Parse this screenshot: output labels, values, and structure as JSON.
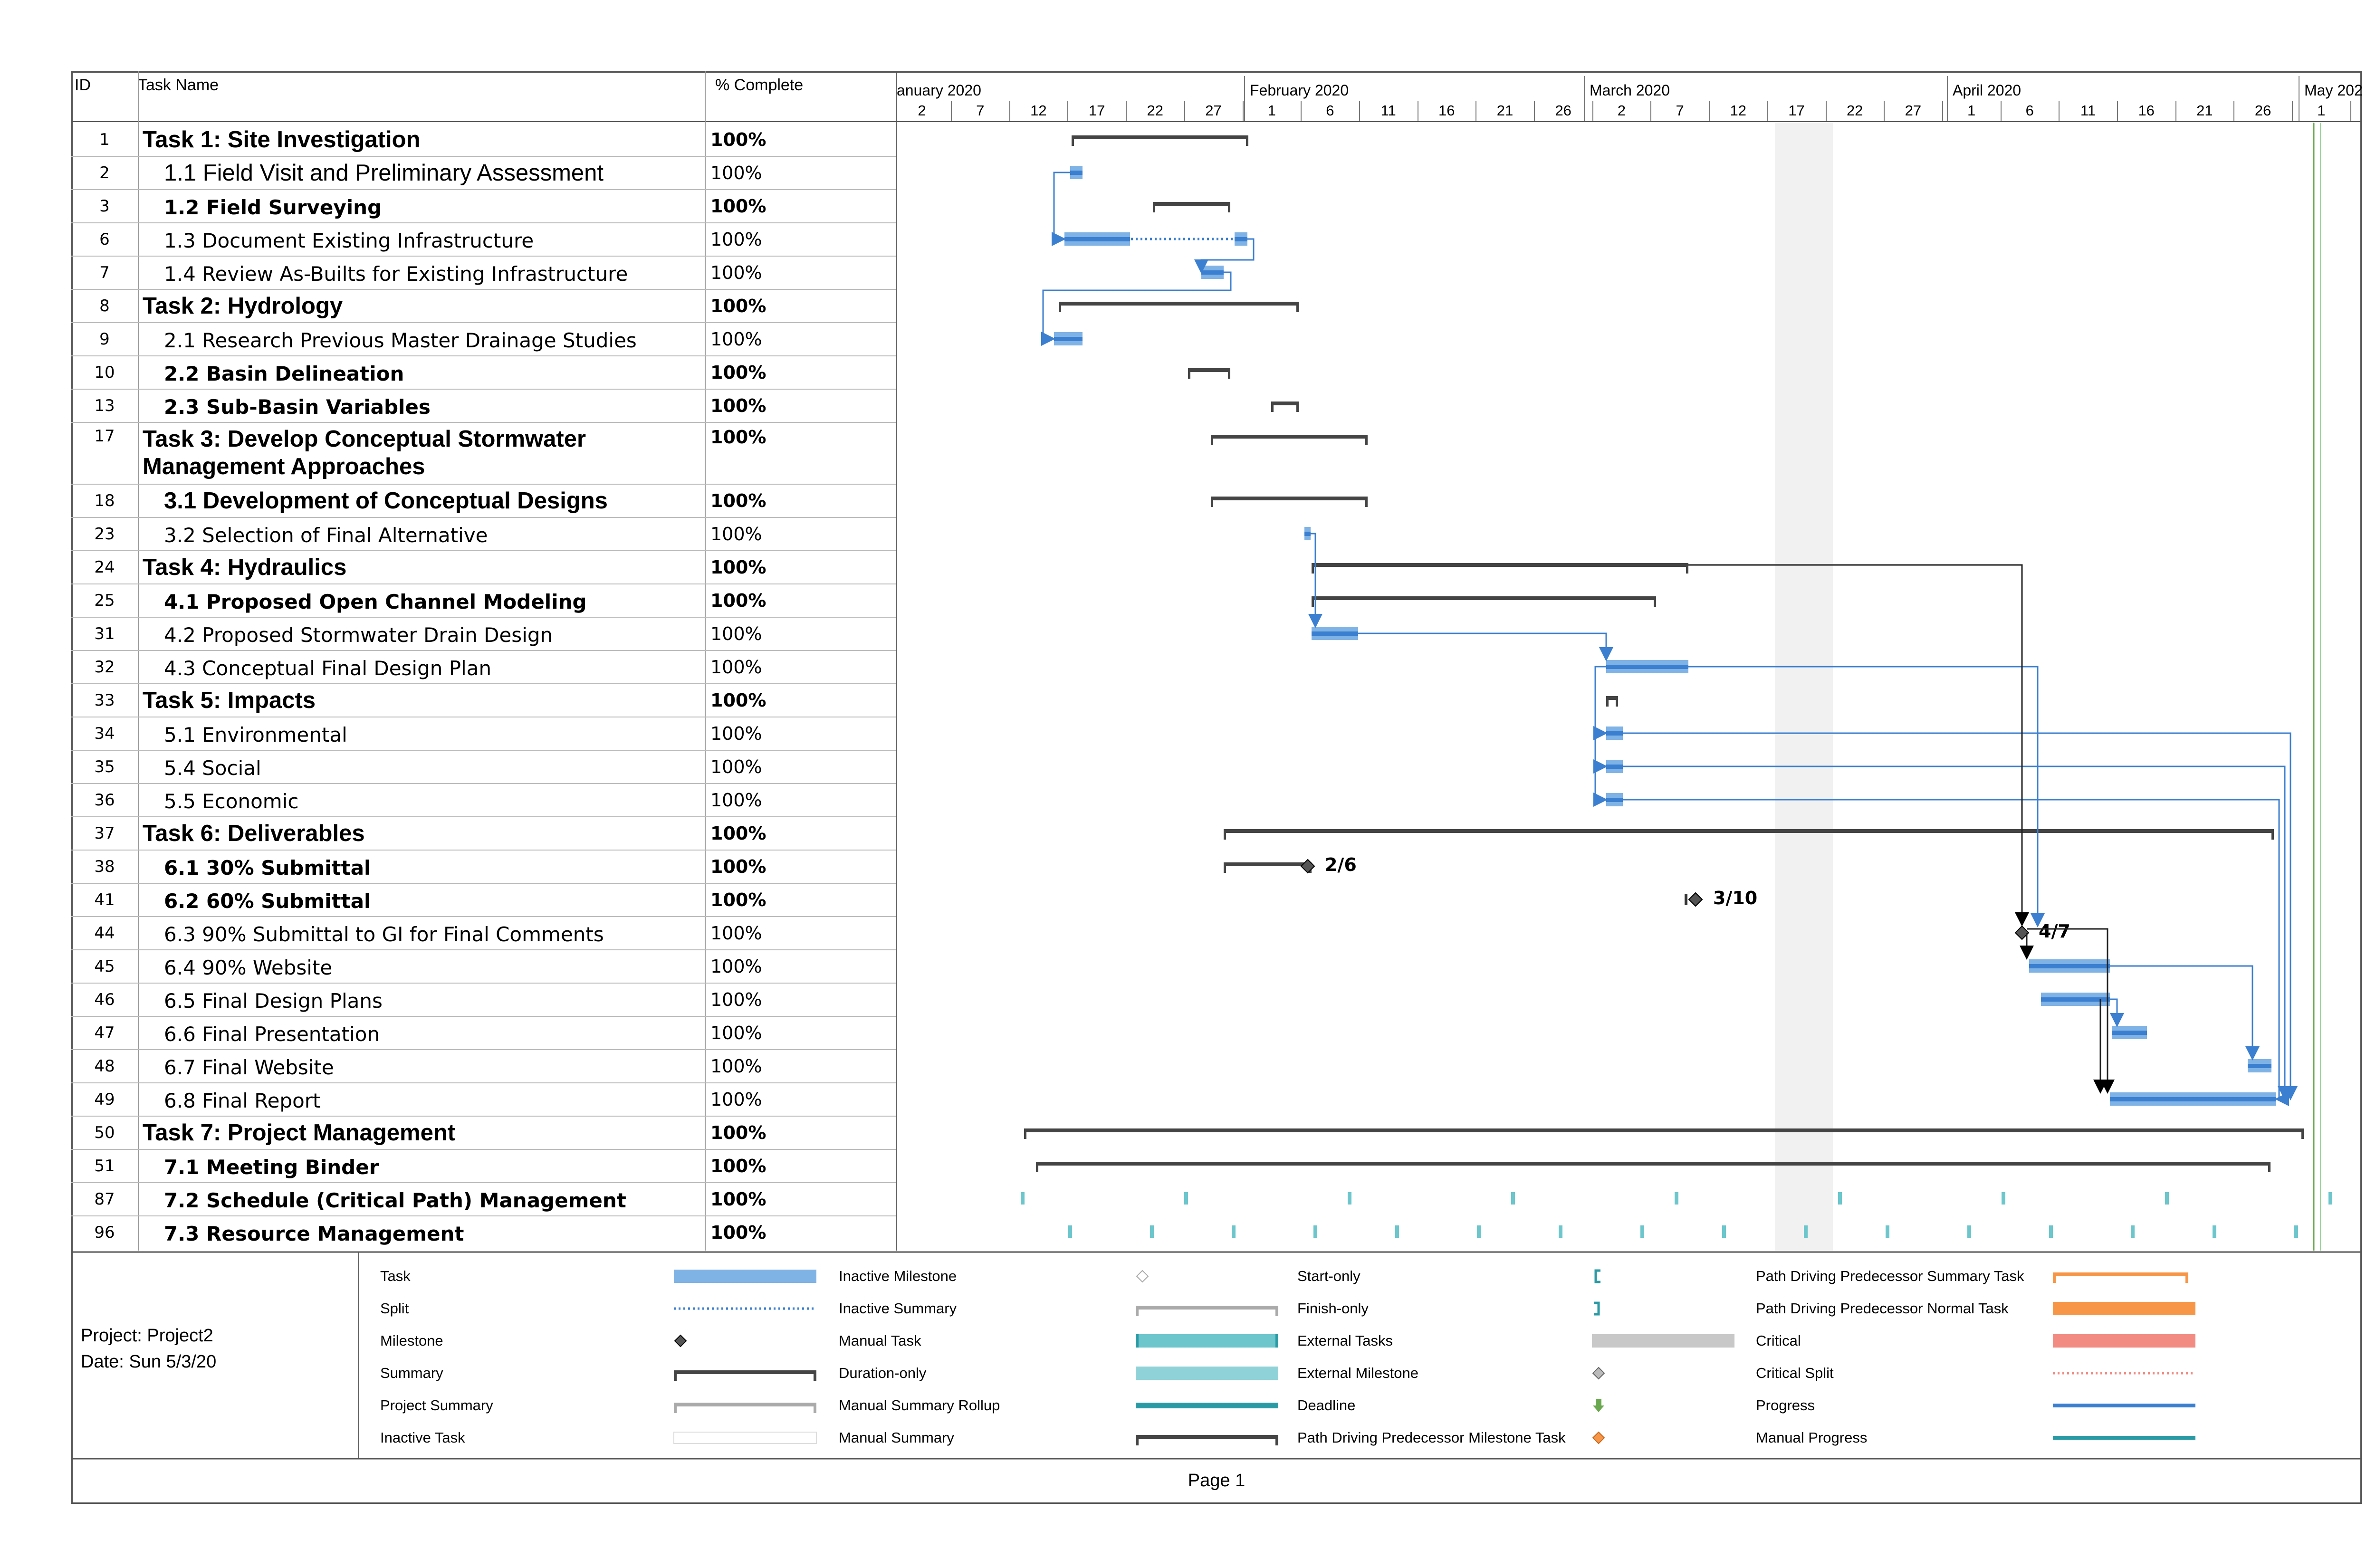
{
  "table": {
    "headers": {
      "id": "ID",
      "name": "Task Name",
      "pct": "% Complete"
    },
    "rows": [
      {
        "id": "1",
        "name": "Task 1: Site Investigation",
        "pct": "100%",
        "level": 1,
        "bold": true
      },
      {
        "id": "2",
        "name": "1.1 Field Visit and Preliminary Assessment",
        "pct": "100%",
        "level": 2,
        "bold": false,
        "big": true
      },
      {
        "id": "3",
        "name": "1.2 Field Surveying",
        "pct": "100%",
        "level": 2,
        "bold": true
      },
      {
        "id": "6",
        "name": "1.3 Document Existing Infrastructure",
        "pct": "100%",
        "level": 2,
        "bold": false
      },
      {
        "id": "7",
        "name": "1.4 Review As-Builts for Existing Infrastructure",
        "pct": "100%",
        "level": 2,
        "bold": false
      },
      {
        "id": "8",
        "name": "Task 2: Hydrology",
        "pct": "100%",
        "level": 1,
        "bold": true
      },
      {
        "id": "9",
        "name": "2.1 Research Previous Master Drainage Studies",
        "pct": "100%",
        "level": 2,
        "bold": false
      },
      {
        "id": "10",
        "name": "2.2 Basin Delineation",
        "pct": "100%",
        "level": 2,
        "bold": true
      },
      {
        "id": "13",
        "name": "2.3 Sub-Basin Variables",
        "pct": "100%",
        "level": 2,
        "bold": true
      },
      {
        "id": "17",
        "name": "Task 3: Develop Conceptual Stormwater",
        "name2": "Management Approaches",
        "pct": "100%",
        "level": 1,
        "bold": true
      },
      {
        "id": "18",
        "name": "3.1 Development of Conceptual Designs",
        "pct": "100%",
        "level": 2,
        "bold": true,
        "big": true
      },
      {
        "id": "23",
        "name": "3.2 Selection of Final Alternative",
        "pct": "100%",
        "level": 2,
        "bold": false
      },
      {
        "id": "24",
        "name": "Task 4: Hydraulics",
        "pct": "100%",
        "level": 1,
        "bold": true
      },
      {
        "id": "25",
        "name": "4.1 Proposed Open Channel Modeling",
        "pct": "100%",
        "level": 2,
        "bold": true
      },
      {
        "id": "31",
        "name": "4.2 Proposed Stormwater Drain Design",
        "pct": "100%",
        "level": 2,
        "bold": false
      },
      {
        "id": "32",
        "name": "4.3 Conceptual Final Design Plan",
        "pct": "100%",
        "level": 2,
        "bold": false
      },
      {
        "id": "33",
        "name": "Task 5: Impacts",
        "pct": "100%",
        "level": 1,
        "bold": true
      },
      {
        "id": "34",
        "name": "5.1 Environmental",
        "pct": "100%",
        "level": 2,
        "bold": false
      },
      {
        "id": "35",
        "name": "5.4 Social",
        "pct": "100%",
        "level": 2,
        "bold": false
      },
      {
        "id": "36",
        "name": "5.5 Economic",
        "pct": "100%",
        "level": 2,
        "bold": false
      },
      {
        "id": "37",
        "name": "Task 6: Deliverables",
        "pct": "100%",
        "level": 1,
        "bold": true
      },
      {
        "id": "38",
        "name": "6.1 30% Submittal",
        "pct": "100%",
        "level": 2,
        "bold": true
      },
      {
        "id": "41",
        "name": "6.2 60% Submittal",
        "pct": "100%",
        "level": 2,
        "bold": true
      },
      {
        "id": "44",
        "name": "6.3 90% Submittal to GI for Final Comments",
        "pct": "100%",
        "level": 2,
        "bold": false
      },
      {
        "id": "45",
        "name": "6.4 90% Website",
        "pct": "100%",
        "level": 2,
        "bold": false
      },
      {
        "id": "46",
        "name": "6.5 Final Design Plans",
        "pct": "100%",
        "level": 2,
        "bold": false
      },
      {
        "id": "47",
        "name": "6.6 Final Presentation",
        "pct": "100%",
        "level": 2,
        "bold": false
      },
      {
        "id": "48",
        "name": "6.7 Final Website",
        "pct": "100%",
        "level": 2,
        "bold": false
      },
      {
        "id": "49",
        "name": "6.8 Final Report",
        "pct": "100%",
        "level": 2,
        "bold": false
      },
      {
        "id": "50",
        "name": "Task 7: Project Management",
        "pct": "100%",
        "level": 1,
        "bold": true
      },
      {
        "id": "51",
        "name": "7.1 Meeting Binder",
        "pct": "100%",
        "level": 2,
        "bold": true
      },
      {
        "id": "87",
        "name": "7.2 Schedule (Critical Path) Management",
        "pct": "100%",
        "level": 2,
        "bold": true
      },
      {
        "id": "96",
        "name": "7.3 Resource Management",
        "pct": "100%",
        "level": 2,
        "bold": true
      }
    ]
  },
  "timescale": {
    "months": [
      "anuary 2020",
      "February 2020",
      "March 2020",
      "April 2020",
      "May 202"
    ],
    "days": [
      "2",
      "7",
      "12",
      "17",
      "22",
      "27",
      "1",
      "6",
      "11",
      "16",
      "21",
      "26",
      "2",
      "7",
      "12",
      "17",
      "22",
      "27",
      "1",
      "6",
      "11",
      "16",
      "21",
      "26",
      "1"
    ]
  },
  "milestone_labels": {
    "m38": "2/6",
    "m41": "3/10",
    "m44": "4/7"
  },
  "project": {
    "name_line": "Project: Project2",
    "date_line": "Date: Sun 5/3/20"
  },
  "legend": [
    {
      "label": "Task",
      "symbol": "task"
    },
    {
      "label": "Split",
      "symbol": "split"
    },
    {
      "label": "Milestone",
      "symbol": "milestone"
    },
    {
      "label": "Summary",
      "symbol": "summary"
    },
    {
      "label": "Project Summary",
      "symbol": "project-summary"
    },
    {
      "label": "Inactive Task",
      "symbol": "inactive-task"
    },
    {
      "label": "Inactive Milestone",
      "symbol": "inactive-milestone"
    },
    {
      "label": "Inactive Summary",
      "symbol": "inactive-summary"
    },
    {
      "label": "Manual Task",
      "symbol": "manual-task"
    },
    {
      "label": "Duration-only",
      "symbol": "duration-only"
    },
    {
      "label": "Manual Summary Rollup",
      "symbol": "manual-summary-rollup"
    },
    {
      "label": "Manual Summary",
      "symbol": "manual-summary"
    },
    {
      "label": "Start-only",
      "symbol": "start-only"
    },
    {
      "label": "Finish-only",
      "symbol": "finish-only"
    },
    {
      "label": "External Tasks",
      "symbol": "external-tasks"
    },
    {
      "label": "External Milestone",
      "symbol": "external-milestone"
    },
    {
      "label": "Deadline",
      "symbol": "deadline"
    },
    {
      "label": "Path Driving Predecessor Milestone Task",
      "symbol": "pd-milestone"
    },
    {
      "label": "Path Driving Predecessor Summary Task",
      "symbol": "pd-summary"
    },
    {
      "label": "Path Driving Predecessor Normal Task",
      "symbol": "pd-normal"
    },
    {
      "label": "Critical",
      "symbol": "critical"
    },
    {
      "label": "Critical Split",
      "symbol": "critical-split"
    },
    {
      "label": "Progress",
      "symbol": "progress"
    },
    {
      "label": "Manual Progress",
      "symbol": "manual-progress"
    }
  ],
  "footer": {
    "page": "Page 1"
  },
  "colors": {
    "task": "#7fb2e5",
    "task_progress": "#3b7fd0",
    "summary": "#444444",
    "link": "#3b7fd0",
    "manual": "#6cc6cc",
    "critical": "#f28b82",
    "pd_normal": "#f79646",
    "deadline": "#6aa84f",
    "status_line": "#6aa84f"
  }
}
